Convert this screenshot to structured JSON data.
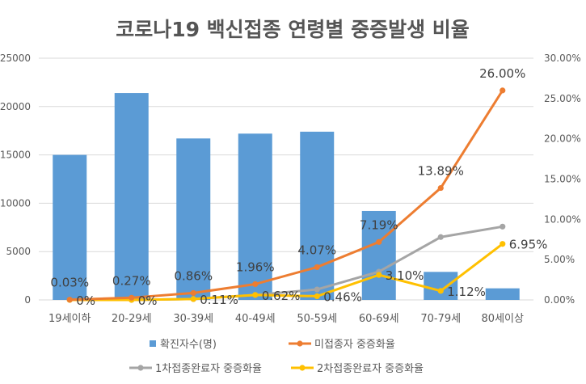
{
  "chart_data": {
    "type": "bar",
    "title": "코로나19 백신접종 연령별 중증발생 비율",
    "categories": [
      "19세이하",
      "20-29세",
      "30-39세",
      "40-49세",
      "50-59세",
      "60-69세",
      "70-79세",
      "80세이상"
    ],
    "left_axis": {
      "min": 0,
      "max": 25000,
      "ticks": [
        "0",
        "5000",
        "10000",
        "15000",
        "20000",
        "25000"
      ]
    },
    "right_axis": {
      "min": 0,
      "max": 30,
      "ticks": [
        "0.00%",
        "5.00%",
        "10.00%",
        "15.00%",
        "20.00%",
        "25.00%",
        "30.00%"
      ]
    },
    "bars": {
      "name": "확진자수(명)",
      "color": "#5b9bd5",
      "values": [
        15000,
        21400,
        16700,
        17200,
        17400,
        9200,
        2900,
        1200
      ]
    },
    "series": [
      {
        "name": "미접종자 중증화율",
        "color": "#ed7d31",
        "values": [
          0.03,
          0.27,
          0.86,
          1.96,
          4.07,
          7.19,
          13.89,
          26.0
        ],
        "labels": [
          "0.03%",
          "0.27%",
          "0.86%",
          "1.96%",
          "4.07%",
          "7.19%",
          "13.89%",
          "26.00%"
        ]
      },
      {
        "name": "1차접종완료자 중증화율",
        "color": "#a5a5a5",
        "values": [
          0.0,
          0.0,
          0.11,
          0.62,
          1.3,
          3.5,
          7.8,
          9.1
        ],
        "labels": []
      },
      {
        "name": "2차접종완료자 중증화율",
        "color": "#ffc000",
        "values": [
          0.0,
          0.0,
          0.11,
          0.62,
          0.46,
          3.1,
          1.12,
          6.95
        ],
        "labels": [
          "0%",
          "0%",
          "0.11%",
          "0.62%",
          "0.46%",
          "3.10%",
          "1.12%",
          "6.95%"
        ]
      }
    ],
    "legend": [
      "확진자수(명)",
      "미접종자 중증화율",
      "1차접종완료자 중증화율",
      "2차접종완료자 중증화율"
    ],
    "grid": true
  }
}
